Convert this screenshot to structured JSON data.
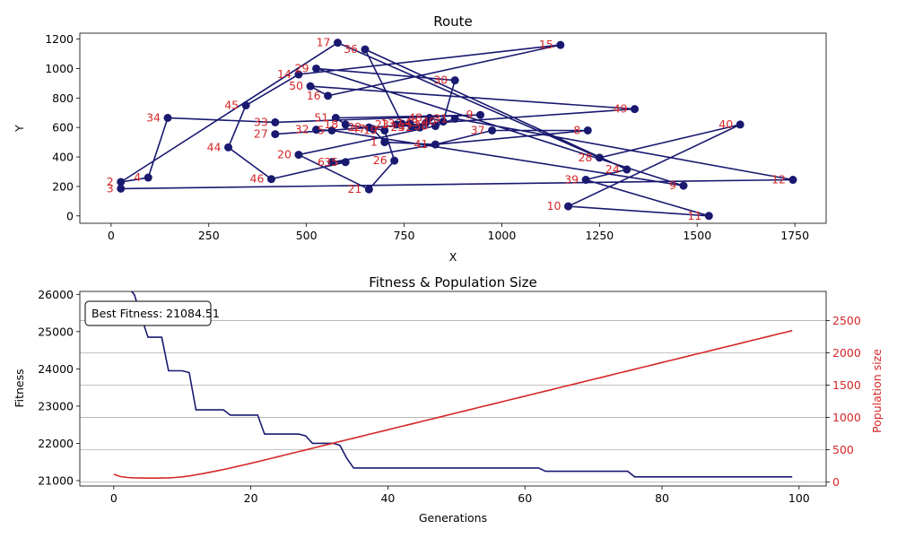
{
  "colors": {
    "route": "#191970",
    "city_label": "#d62728",
    "fitness": "#191970",
    "population": "#d62728",
    "grid": "#b0b0b0"
  },
  "chart_data": [
    {
      "type": "line",
      "title": "Route",
      "xlabel": "X",
      "ylabel": "Y",
      "xlim": [
        -80,
        1830
      ],
      "ylim": [
        -50,
        1240
      ],
      "xticks": [
        0,
        250,
        500,
        750,
        1000,
        1250,
        1500,
        1750
      ],
      "yticks": [
        0,
        200,
        400,
        600,
        800,
        1000,
        1200
      ],
      "grid": false,
      "cities": [
        {
          "id": "2",
          "x": 25,
          "y": 230
        },
        {
          "id": "3",
          "x": 25,
          "y": 185
        },
        {
          "id": "4",
          "x": 95,
          "y": 260
        },
        {
          "id": "34",
          "x": 145,
          "y": 665
        },
        {
          "id": "44",
          "x": 300,
          "y": 465
        },
        {
          "id": "45",
          "x": 345,
          "y": 750
        },
        {
          "id": "46",
          "x": 410,
          "y": 250
        },
        {
          "id": "33",
          "x": 420,
          "y": 635
        },
        {
          "id": "27",
          "x": 420,
          "y": 555
        },
        {
          "id": "20",
          "x": 480,
          "y": 415
        },
        {
          "id": "14",
          "x": 480,
          "y": 960
        },
        {
          "id": "50",
          "x": 510,
          "y": 880
        },
        {
          "id": "29",
          "x": 525,
          "y": 1000
        },
        {
          "id": "32",
          "x": 525,
          "y": 585
        },
        {
          "id": "16",
          "x": 555,
          "y": 815
        },
        {
          "id": "5",
          "x": 565,
          "y": 580
        },
        {
          "id": "6",
          "x": 565,
          "y": 365
        },
        {
          "id": "51",
          "x": 575,
          "y": 665
        },
        {
          "id": "17",
          "x": 580,
          "y": 1175
        },
        {
          "id": "35",
          "x": 600,
          "y": 365
        },
        {
          "id": "18",
          "x": 600,
          "y": 620
        },
        {
          "id": "36",
          "x": 650,
          "y": 1130
        },
        {
          "id": "22",
          "x": 660,
          "y": 600
        },
        {
          "id": "21",
          "x": 660,
          "y": 180
        },
        {
          "id": "47",
          "x": 670,
          "y": 590
        },
        {
          "id": "1",
          "x": 700,
          "y": 500
        },
        {
          "id": "19",
          "x": 700,
          "y": 580
        },
        {
          "id": "26",
          "x": 725,
          "y": 375
        },
        {
          "id": "23",
          "x": 730,
          "y": 620
        },
        {
          "id": "13",
          "x": 745,
          "y": 625
        },
        {
          "id": "7",
          "x": 765,
          "y": 625
        },
        {
          "id": "25",
          "x": 770,
          "y": 600
        },
        {
          "id": "42",
          "x": 790,
          "y": 600
        },
        {
          "id": "43",
          "x": 805,
          "y": 630
        },
        {
          "id": "48",
          "x": 815,
          "y": 665
        },
        {
          "id": "38",
          "x": 830,
          "y": 610
        },
        {
          "id": "41",
          "x": 830,
          "y": 485
        },
        {
          "id": "40",
          "x": 850,
          "y": 640
        },
        {
          "id": "31",
          "x": 880,
          "y": 660
        },
        {
          "id": "30",
          "x": 880,
          "y": 920
        },
        {
          "id": "9",
          "x": 945,
          "y": 685
        },
        {
          "id": "37",
          "x": 975,
          "y": 580
        },
        {
          "id": "15",
          "x": 1150,
          "y": 1160
        },
        {
          "id": "10",
          "x": 1170,
          "y": 65
        },
        {
          "id": "39",
          "x": 1215,
          "y": 245
        },
        {
          "id": "8",
          "x": 1220,
          "y": 580
        },
        {
          "id": "28",
          "x": 1250,
          "y": 395
        },
        {
          "id": "24",
          "x": 1320,
          "y": 315
        },
        {
          "id": "49",
          "x": 1340,
          "y": 725
        },
        {
          "id": "9b",
          "x": 1465,
          "y": 205
        },
        {
          "id": "11",
          "x": 1530,
          "y": 0
        },
        {
          "id": "40b",
          "x": 1610,
          "y": 620
        },
        {
          "id": "12",
          "x": 1745,
          "y": 245
        }
      ],
      "label_texts": [
        "2",
        "3",
        "4",
        "34",
        "44",
        "45",
        "46",
        "33",
        "27",
        "20",
        "14",
        "50",
        "29",
        "32",
        "16",
        "5",
        "6",
        "51",
        "17",
        "35",
        "18",
        "36",
        "22",
        "21",
        "47",
        "1",
        "19",
        "26",
        "23",
        "13",
        "7",
        "25",
        "42",
        "43",
        "48",
        "38",
        "41",
        "40",
        "31",
        "30",
        "9",
        "37",
        "15",
        "10",
        "39",
        "8",
        "28",
        "24",
        "49",
        "9",
        "11",
        "40",
        "12"
      ]
    },
    {
      "type": "line",
      "title": "Fitness & Population Size",
      "xlabel": "Generations",
      "ylabel": "Fitness",
      "ylabel_right": "Population size",
      "xlim": [
        -4.95,
        103.95
      ],
      "ylim": [
        20855,
        26080
      ],
      "ylim_right": [
        -60,
        2950
      ],
      "xticks": [
        0,
        20,
        40,
        60,
        80,
        100
      ],
      "yticks": [
        21000,
        22000,
        23000,
        24000,
        25000,
        26000
      ],
      "yticks_right": [
        0,
        500,
        1000,
        1500,
        2000,
        2500
      ],
      "grid": true,
      "annotation": "Best Fitness: 21084.51",
      "series": [
        {
          "axis": "left",
          "values": [
            26600,
            26400,
            26200,
            26000,
            25400,
            24850,
            24850,
            24850,
            23950,
            23950,
            23950,
            23900,
            22900,
            22900,
            22900,
            22900,
            22900,
            22760,
            22760,
            22760,
            22760,
            22760,
            22250,
            22250,
            22250,
            22250,
            22250,
            22250,
            22200,
            22000,
            22000,
            22000,
            22000,
            21950,
            21600,
            21340,
            21340,
            21340,
            21340,
            21340,
            21340,
            21340,
            21340,
            21340,
            21340,
            21340,
            21340,
            21340,
            21340,
            21340,
            21340,
            21340,
            21340,
            21340,
            21340,
            21340,
            21340,
            21340,
            21340,
            21340,
            21340,
            21340,
            21340,
            21250,
            21250,
            21250,
            21250,
            21250,
            21250,
            21250,
            21250,
            21250,
            21250,
            21250,
            21250,
            21250,
            21100,
            21100,
            21100,
            21100,
            21100,
            21100,
            21100,
            21100,
            21100,
            21100,
            21100,
            21100,
            21100,
            21100,
            21100,
            21100,
            21100,
            21100,
            21100,
            21100,
            21100,
            21100,
            21100,
            21100
          ]
        },
        {
          "axis": "right",
          "values": [
            120,
            85,
            72,
            66,
            63,
            62,
            62,
            63,
            66,
            72,
            82,
            96,
            113,
            132,
            152,
            173,
            195,
            218,
            242,
            266,
            291,
            316,
            342,
            368,
            394,
            420,
            446,
            472,
            498,
            524,
            550,
            576,
            602,
            628,
            654,
            680,
            706,
            732,
            758,
            784,
            810,
            836,
            862,
            888,
            914,
            940,
            966,
            992,
            1018,
            1044,
            1070,
            1096,
            1122,
            1148,
            1174,
            1200,
            1226,
            1252,
            1278,
            1304,
            1330,
            1356,
            1382,
            1408,
            1434,
            1460,
            1486,
            1512,
            1538,
            1564,
            1590,
            1616,
            1642,
            1668,
            1694,
            1720,
            1746,
            1772,
            1798,
            1824,
            1850,
            1876,
            1902,
            1928,
            1954,
            1980,
            2006,
            2032,
            2058,
            2084,
            2110,
            2136,
            2162,
            2188,
            2214,
            2240,
            2266,
            2292,
            2318,
            2344
          ]
        }
      ]
    }
  ]
}
